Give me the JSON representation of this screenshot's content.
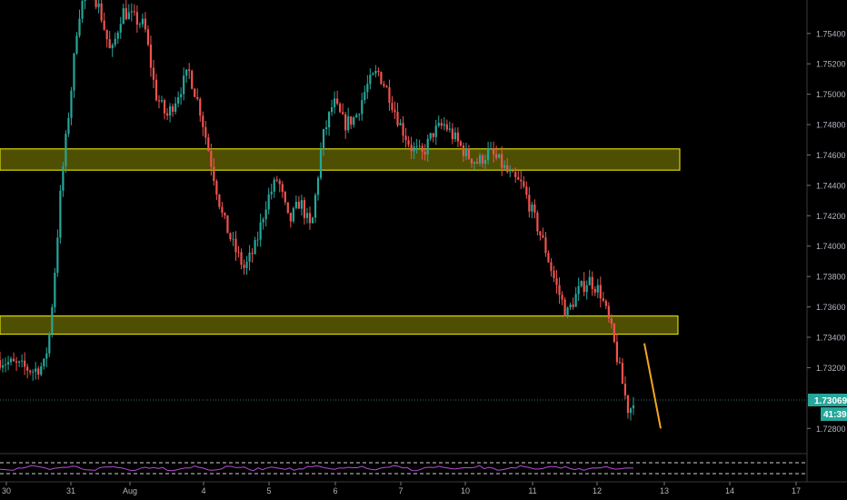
{
  "chart_data": {
    "type": "candlestick",
    "title": "",
    "xlabel": "",
    "ylabel": "",
    "ylim": [
      1.7264,
      1.7562
    ],
    "grid": false,
    "y_ticks": [
      "1.75400",
      "1.75200",
      "1.75000",
      "1.74800",
      "1.74600",
      "1.74400",
      "1.74200",
      "1.74000",
      "1.73800",
      "1.73600",
      "1.73400",
      "1.73200",
      "1.72800"
    ],
    "x_ticks": [
      "30",
      "31",
      "Aug",
      "4",
      "5",
      "6",
      "7",
      "10",
      "11",
      "12",
      "13",
      "14",
      "17"
    ],
    "price_path": [
      [
        0,
        1.7325
      ],
      [
        1.5,
        1.7318
      ],
      [
        2,
        1.7322
      ],
      [
        2.25,
        1.7345
      ],
      [
        2.5,
        1.739
      ],
      [
        2.75,
        1.744
      ],
      [
        3,
        1.7475
      ],
      [
        3.25,
        1.751
      ],
      [
        3.5,
        1.755
      ],
      [
        4,
        1.7575
      ],
      [
        4.5,
        1.7555
      ],
      [
        5,
        1.7525
      ],
      [
        5.5,
        1.7555
      ],
      [
        6.5,
        1.7545
      ],
      [
        7,
        1.75
      ],
      [
        7.5,
        1.7485
      ],
      [
        8,
        1.75
      ],
      [
        8.5,
        1.7515
      ],
      [
        9,
        1.749
      ],
      [
        9.5,
        1.7455
      ],
      [
        10,
        1.742
      ],
      [
        10.5,
        1.74
      ],
      [
        11,
        1.7385
      ],
      [
        11.5,
        1.74
      ],
      [
        12,
        1.743
      ],
      [
        12.5,
        1.7445
      ],
      [
        13,
        1.7415
      ],
      [
        13.5,
        1.743
      ],
      [
        14,
        1.741
      ],
      [
        14.5,
        1.747
      ],
      [
        15,
        1.7495
      ],
      [
        15.5,
        1.748
      ],
      [
        16,
        1.7485
      ],
      [
        16.5,
        1.7505
      ],
      [
        17,
        1.7515
      ],
      [
        17.5,
        1.75
      ],
      [
        18,
        1.748
      ],
      [
        18.5,
        1.7465
      ],
      [
        19,
        1.746
      ],
      [
        19.5,
        1.7475
      ],
      [
        20,
        1.748
      ],
      [
        20.5,
        1.747
      ],
      [
        21,
        1.746
      ],
      [
        21.5,
        1.7455
      ],
      [
        22,
        1.7462
      ],
      [
        22.5,
        1.7455
      ],
      [
        23,
        1.7445
      ],
      [
        23.5,
        1.744
      ],
      [
        24,
        1.742
      ],
      [
        24.5,
        1.74
      ],
      [
        25,
        1.7375
      ],
      [
        25.5,
        1.7355
      ],
      [
        26,
        1.737
      ],
      [
        26.5,
        1.7378
      ],
      [
        27,
        1.737
      ],
      [
        27.5,
        1.7345
      ],
      [
        28,
        1.731
      ],
      [
        28.3,
        1.729
      ],
      [
        28.5,
        1.73
      ]
    ],
    "zones": [
      {
        "from": 1.745,
        "to": 1.7464
      },
      {
        "from": 1.7342,
        "to": 1.7354
      }
    ],
    "projection": {
      "from": [
        28.8,
        1.7336
      ],
      "to": [
        29.5,
        1.728
      ]
    },
    "last_price": "1.73069",
    "last_price_value": 1.73069,
    "countdown": "41:39",
    "colors": {
      "up": "#26a69a",
      "down": "#ef5350",
      "zone": "#f5f50a",
      "projection": "#f5a623",
      "last_price": "#26a69a",
      "oscillator": "#b84bd6"
    }
  }
}
